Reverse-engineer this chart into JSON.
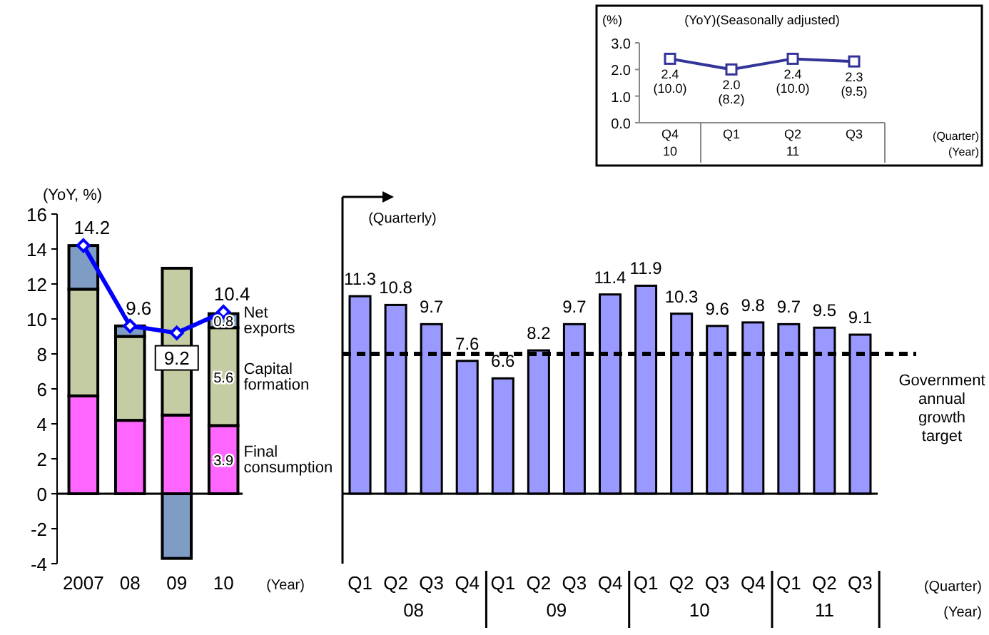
{
  "chart_data": [
    {
      "type": "bar",
      "stacked": true,
      "ylabel": "(YoY, %)",
      "xlabel": "(Year)",
      "categories": [
        "2007",
        "08",
        "09",
        "10"
      ],
      "ylim": [
        -4,
        16
      ],
      "yticks": [
        -4,
        -2,
        0,
        2,
        4,
        6,
        8,
        10,
        12,
        14,
        16
      ],
      "series": [
        {
          "name": "Final consumption",
          "color": "#ff66ff",
          "values": [
            5.6,
            4.2,
            4.5,
            3.9
          ],
          "value_labels": [
            null,
            null,
            null,
            "3.9"
          ]
        },
        {
          "name": "Capital formation",
          "color": "#c4cca4",
          "values": [
            6.1,
            4.8,
            8.4,
            5.6
          ],
          "value_labels": [
            null,
            null,
            null,
            "5.6"
          ]
        },
        {
          "name": "Net exports",
          "color": "#7f9cc4",
          "values": [
            2.5,
            0.6,
            -3.7,
            0.8
          ],
          "value_labels": [
            null,
            null,
            null,
            "0.8"
          ]
        },
        {
          "type": "line",
          "color": "#0000ff",
          "marker": "diamond",
          "values": [
            14.2,
            9.6,
            9.2,
            10.4
          ],
          "value_labels": [
            "14.2",
            "9.6",
            "9.2",
            "10.4"
          ]
        }
      ]
    },
    {
      "type": "bar",
      "xlabel": "(Quarter)",
      "categories": [
        "Q1",
        "Q2",
        "Q3",
        "Q4",
        "Q1",
        "Q2",
        "Q3",
        "Q4",
        "Q1",
        "Q2",
        "Q3",
        "Q4",
        "Q1",
        "Q2",
        "Q3"
      ],
      "ylim": [
        -4,
        16
      ],
      "tick_labels": "x",
      "data_labels": true,
      "series": [
        {
          "color": "#9999ff",
          "values": [
            11.3,
            10.8,
            9.7,
            7.6,
            6.6,
            8.2,
            9.7,
            11.4,
            11.9,
            10.3,
            9.6,
            9.8,
            9.7,
            9.5,
            9.1
          ]
        }
      ],
      "ref_lines": [
        {
          "axis": "y",
          "value": 8,
          "label": "Government annual growth target",
          "line_style": "dashed",
          "color": "#000000"
        }
      ],
      "annotations": [
        "(Quarterly)",
        "(Year)",
        "08",
        "09",
        "10",
        "11"
      ]
    },
    {
      "type": "line",
      "title": "(YoY)(Seasonally adjusted)",
      "ylabel": "(%)",
      "xlabel": "(Quarter)",
      "categories": [
        "Q4",
        "Q1",
        "Q2",
        "Q3"
      ],
      "ylim": [
        0,
        3
      ],
      "yticks": [
        {
          "value": 0,
          "label": "0.0"
        },
        {
          "value": 1,
          "label": "1.0"
        },
        {
          "value": 2,
          "label": "2.0"
        },
        {
          "value": 3,
          "label": "3.0"
        }
      ],
      "marker": "square",
      "series": [
        {
          "color": "#333399",
          "values": [
            2.4,
            2.0,
            2.4,
            2.3
          ],
          "value_labels": [
            "2.4\n(10.0)",
            "2.0\n(8.2)",
            "2.4\n(10.0)",
            "2.3\n(9.5)"
          ]
        }
      ],
      "annotations": [
        "(Year)",
        "10",
        "11"
      ]
    }
  ]
}
